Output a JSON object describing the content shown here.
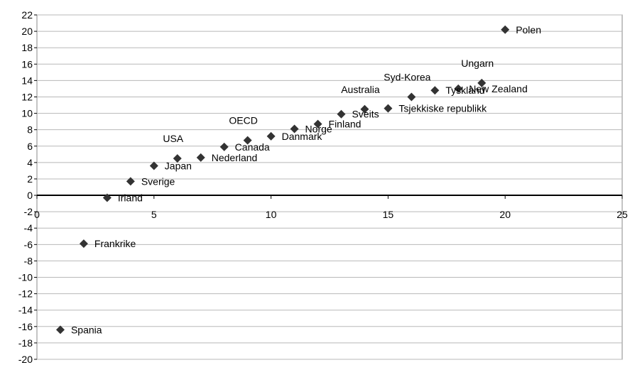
{
  "chart_data": {
    "type": "scatter",
    "title": "",
    "xlabel": "",
    "ylabel": "",
    "xlim": [
      0,
      25
    ],
    "ylim": [
      -20,
      22
    ],
    "x_ticks": [
      0,
      5,
      10,
      15,
      20,
      25
    ],
    "y_ticks": [
      -20,
      -18,
      -16,
      -14,
      -12,
      -10,
      -8,
      -6,
      -4,
      -2,
      0,
      2,
      4,
      6,
      8,
      10,
      12,
      14,
      16,
      18,
      20,
      22
    ],
    "grid": "horizontal",
    "marker": "diamond",
    "marker_color": "#333333",
    "points": [
      {
        "label": "Spania",
        "x": 1,
        "y": -16.4,
        "label_pos": "right"
      },
      {
        "label": "Frankrike",
        "x": 2,
        "y": -5.9,
        "label_pos": "right"
      },
      {
        "label": "Irland",
        "x": 3,
        "y": -0.3,
        "label_pos": "right"
      },
      {
        "label": "Sverige",
        "x": 4,
        "y": 1.7,
        "label_pos": "right"
      },
      {
        "label": "Japan",
        "x": 5,
        "y": 3.6,
        "label_pos": "right"
      },
      {
        "label": "USA",
        "x": 6,
        "y": 4.5,
        "label_pos": "above"
      },
      {
        "label": "Nederland",
        "x": 7,
        "y": 4.6,
        "label_pos": "right"
      },
      {
        "label": "Canada",
        "x": 8,
        "y": 5.9,
        "label_pos": "right"
      },
      {
        "label": "OECD",
        "x": 9,
        "y": 6.7,
        "label_pos": "above"
      },
      {
        "label": "Danmark",
        "x": 10,
        "y": 7.2,
        "label_pos": "right"
      },
      {
        "label": "Norge",
        "x": 11,
        "y": 8.1,
        "label_pos": "right"
      },
      {
        "label": "Finland",
        "x": 12,
        "y": 8.7,
        "label_pos": "right"
      },
      {
        "label": "Sveits",
        "x": 13,
        "y": 9.9,
        "label_pos": "right"
      },
      {
        "label": "Australia",
        "x": 14,
        "y": 10.5,
        "label_pos": "above"
      },
      {
        "label": "Tsjekkiske republikk",
        "x": 15,
        "y": 10.6,
        "label_pos": "right"
      },
      {
        "label": "Syd-Korea",
        "x": 16,
        "y": 12.0,
        "label_pos": "above"
      },
      {
        "label": "Tyskland",
        "x": 17,
        "y": 12.8,
        "label_pos": "right"
      },
      {
        "label": "New Zealand",
        "x": 18,
        "y": 13.0,
        "label_pos": "right"
      },
      {
        "label": "Ungarn",
        "x": 19,
        "y": 13.7,
        "label_pos": "above"
      },
      {
        "label": "Polen",
        "x": 20,
        "y": 20.2,
        "label_pos": "right"
      }
    ]
  }
}
